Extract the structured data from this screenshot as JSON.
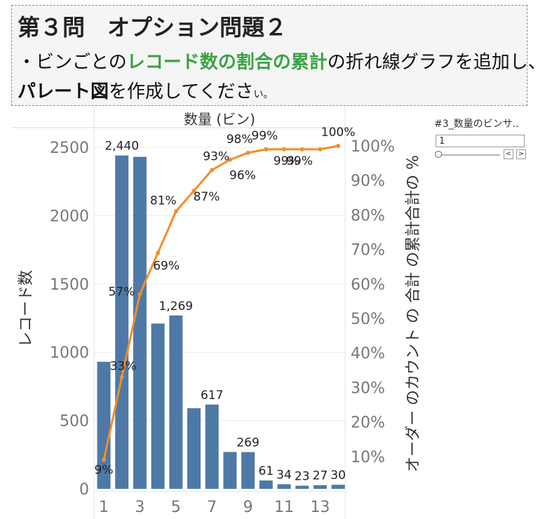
{
  "header": {
    "title": "第３問　オプション問題２",
    "line1_pre": "・ビンごとの",
    "line1_highlight": "レコード数の割合の累計",
    "line1_post": "の折れ線グラフを追加し、",
    "line2_bold": "パレート図",
    "line2_post": "を作成してくださ",
    "line2_tail": "い。"
  },
  "parameter": {
    "title": "#3_数量のビンサ..",
    "value": "1",
    "prev_label": "<",
    "next_label": ">"
  },
  "colors": {
    "bar": "#4e79a7",
    "line": "#f28e2b",
    "highlight": "#3aa343"
  },
  "chart_data": {
    "type": "bar",
    "title": "数量 (ビン)",
    "xlabel": "",
    "ylabel": "レコード数",
    "y2label": "オーダー のカウント の 合計 の累計合計の %",
    "x": [
      1,
      2,
      3,
      4,
      5,
      6,
      7,
      8,
      9,
      10,
      11,
      12,
      13,
      14
    ],
    "x_tick_labels": [
      "1",
      "3",
      "5",
      "7",
      "9",
      "11",
      "13"
    ],
    "x_tick_values": [
      1,
      3,
      5,
      7,
      9,
      11,
      13
    ],
    "ylim": [
      0,
      2500
    ],
    "y_ticks": [
      0,
      500,
      1000,
      1500,
      2000,
      2500
    ],
    "y2lim": [
      0,
      100
    ],
    "y2_ticks": [
      "10%",
      "20%",
      "30%",
      "40%",
      "50%",
      "60%",
      "70%",
      "80%",
      "90%",
      "100%"
    ],
    "grid": true,
    "series": [
      {
        "type": "bar",
        "values": [
          930,
          2440,
          2430,
          1210,
          1269,
          590,
          617,
          270,
          269,
          61,
          34,
          23,
          27,
          30
        ],
        "labels": [
          "",
          "2,440",
          "",
          "",
          "1,269",
          "",
          "617",
          "",
          "269",
          "61",
          "34",
          "23",
          "27",
          "30"
        ]
      },
      {
        "type": "line",
        "values": [
          9,
          33,
          57,
          69,
          81,
          87,
          93,
          96,
          98,
          99,
          99,
          99,
          99,
          100
        ],
        "labels": [
          "9%",
          "33%",
          "57%",
          "69%",
          "81%",
          "87%",
          "93%",
          "96%",
          "98%",
          "99%",
          "99%",
          "99%",
          "",
          "100%"
        ]
      }
    ]
  }
}
